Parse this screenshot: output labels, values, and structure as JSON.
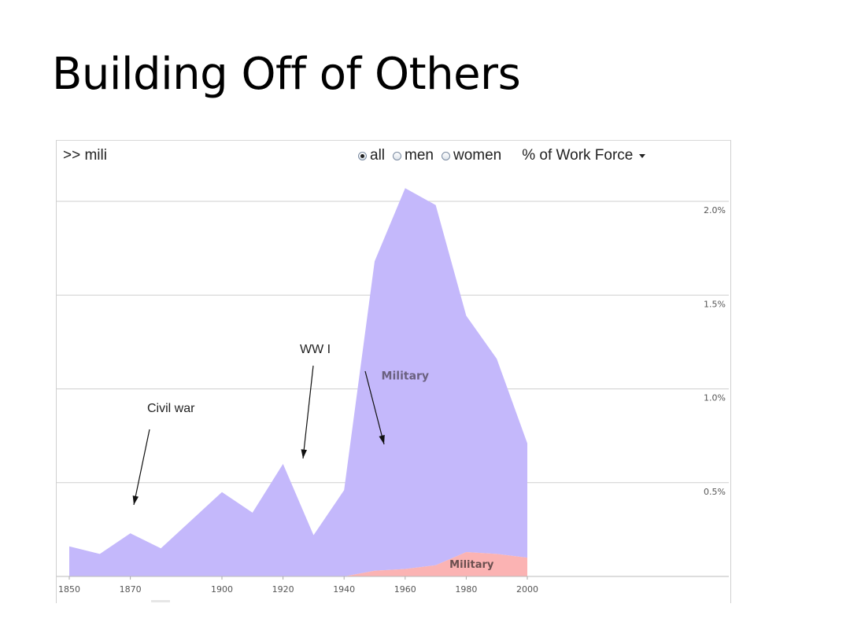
{
  "slide": {
    "title": "Building Off of Others"
  },
  "toolbar": {
    "query": ">> mili",
    "options": [
      {
        "label": "all",
        "selected": true
      },
      {
        "label": "men",
        "selected": false
      },
      {
        "label": "women",
        "selected": false
      }
    ],
    "measure": "% of Work Force"
  },
  "chart_data": {
    "type": "area",
    "stacked": true,
    "x": [
      1850,
      1860,
      1870,
      1880,
      1900,
      1910,
      1920,
      1930,
      1940,
      1950,
      1960,
      1970,
      1980,
      1990,
      2000
    ],
    "xticks": [
      "1850",
      "1870",
      "1900",
      "1920",
      "1940",
      "1960",
      "1980",
      "2000"
    ],
    "yticks": [
      "0.5%",
      "1.0%",
      "1.5%",
      "2.0%"
    ],
    "ylim": [
      0,
      2.0
    ],
    "grid": true,
    "series": [
      {
        "name": "Military",
        "color": "#fbb3b3",
        "values": [
          0,
          0,
          0,
          0,
          0,
          0,
          0,
          0,
          0,
          0.03,
          0.04,
          0.06,
          0.13,
          0.12,
          0.1
        ]
      },
      {
        "name": "Military",
        "color": "#c4b8fb",
        "values": [
          0.16,
          0.12,
          0.23,
          0.15,
          0.45,
          0.34,
          0.6,
          0.22,
          0.46,
          1.65,
          2.03,
          1.92,
          1.26,
          1.04,
          0.61
        ]
      }
    ],
    "annotations": [
      {
        "text": "Civil war",
        "x": 1865
      },
      {
        "text": "WW I",
        "x": 1918
      },
      {
        "text": "",
        "x": 1935
      }
    ]
  }
}
